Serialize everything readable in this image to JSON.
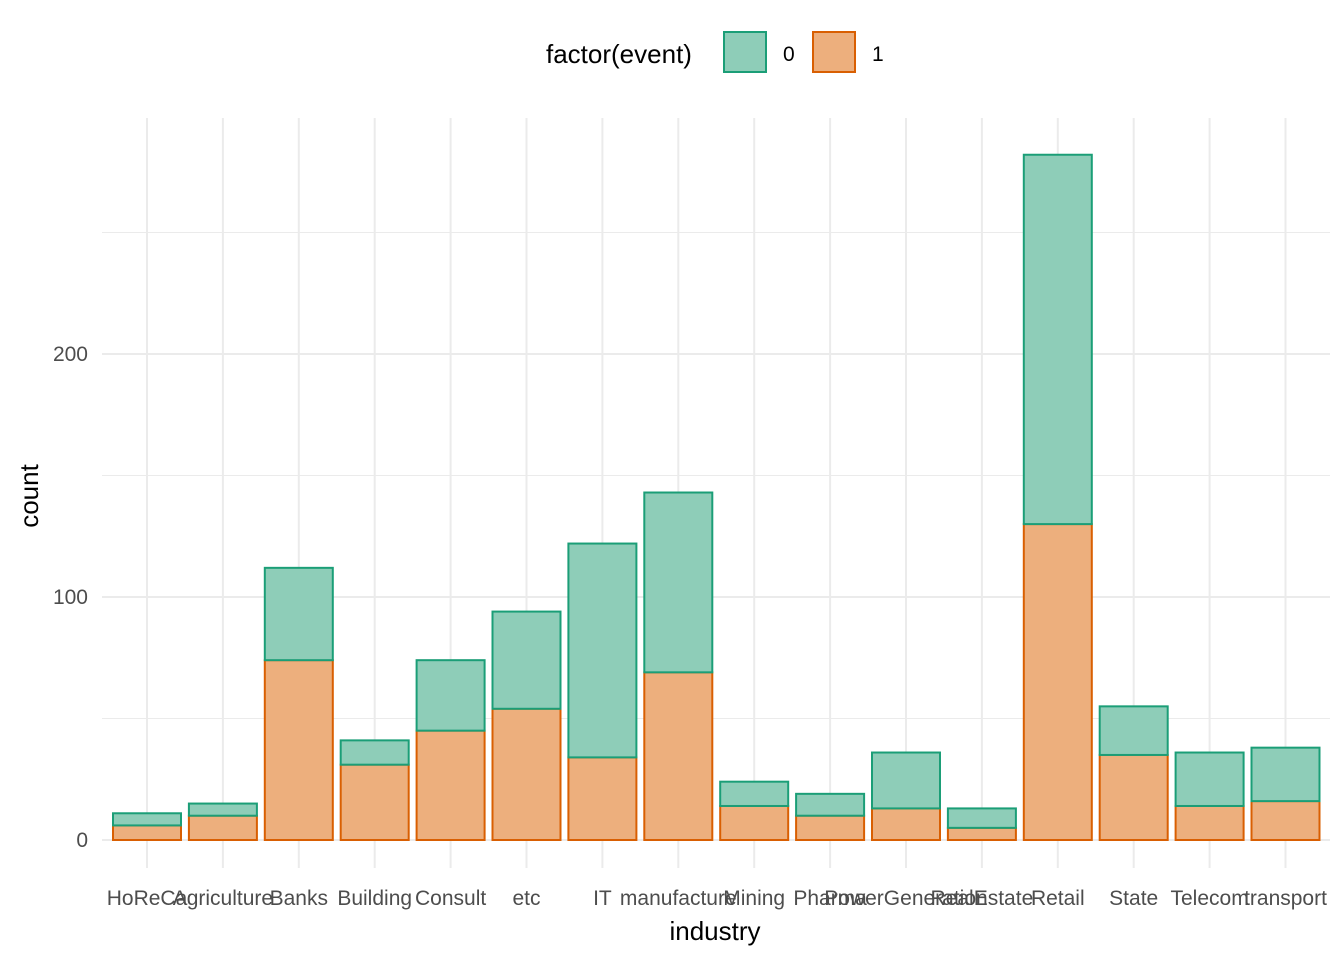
{
  "chart_data": {
    "type": "bar",
    "stacked": true,
    "xlabel": "industry",
    "ylabel": "count",
    "ylim": [
      -11,
      282
    ],
    "y_ticks": [
      0,
      100,
      200
    ],
    "grid": true,
    "legend": {
      "title": "factor(event)",
      "placement": "top",
      "entries": [
        {
          "label": "0",
          "fill": "#8ECDB8",
          "stroke": "#1B9E77"
        },
        {
          "label": "1",
          "fill": "#EDAF7D",
          "stroke": "#D95F02"
        }
      ]
    },
    "categories": [
      "HoReCa",
      "Agriculture",
      "Banks",
      "Building",
      "Consult",
      "etc",
      "IT",
      "manufacture",
      "Mining",
      "Pharma",
      "PowerGeneration",
      "RealEstate",
      "Retail",
      "State",
      "Telecom",
      "transport"
    ],
    "series": [
      {
        "name": "1",
        "values": [
          6,
          10,
          74,
          31,
          45,
          54,
          34,
          69,
          14,
          10,
          13,
          5,
          130,
          35,
          14,
          16
        ]
      },
      {
        "name": "0",
        "values": [
          5,
          5,
          38,
          10,
          29,
          40,
          88,
          74,
          10,
          9,
          23,
          8,
          152,
          20,
          22,
          22
        ]
      }
    ]
  }
}
